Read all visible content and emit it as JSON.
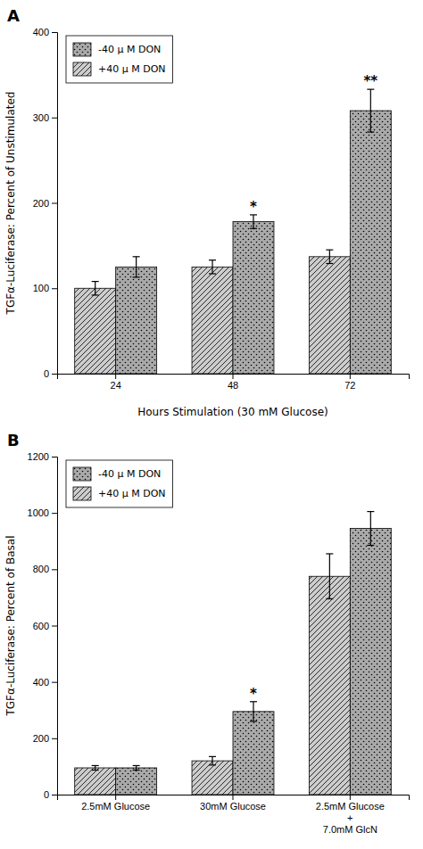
{
  "chart_data": [
    {
      "type": "bar",
      "title": "A",
      "categories": [
        "24",
        "48",
        "72"
      ],
      "series": [
        {
          "name": "+40 μ M DON",
          "color": "#cccccc",
          "values": [
            100,
            125,
            137
          ],
          "errors": [
            8,
            8,
            8
          ]
        },
        {
          "name": "-40 μ M DON",
          "color": "#aaaaaa",
          "values": [
            125,
            178,
            308
          ],
          "errors": [
            12,
            8,
            25
          ],
          "annotations": [
            null,
            "*",
            "**"
          ]
        }
      ],
      "xlabel": "Hours Stimulation (30 mM Glucose)",
      "ylabel": "TGFα-Luciferase: Percent of Unstimulated",
      "ylim": [
        0,
        400
      ],
      "yticks": [
        0,
        100,
        200,
        300,
        400
      ],
      "grid": false,
      "legend": "upper left"
    },
    {
      "type": "bar",
      "title": "B",
      "categories": [
        "2.5mM Glucose",
        "30mM Glucose",
        "2.5mM Glucose\n+\n7.0mM GlcN"
      ],
      "series": [
        {
          "name": "+40 μ M DON",
          "color": "#cccccc",
          "values": [
            95,
            120,
            775
          ],
          "errors": [
            8,
            15,
            80
          ]
        },
        {
          "name": "-40 μ M DON",
          "color": "#aaaaaa",
          "values": [
            95,
            295,
            945
          ],
          "errors": [
            8,
            35,
            60
          ],
          "annotations": [
            null,
            "*",
            null
          ]
        }
      ],
      "ylabel": "TGFα-Luciferase: Percent of Basal",
      "ylim": [
        0,
        1200
      ],
      "yticks": [
        0,
        200,
        400,
        600,
        800,
        1000,
        1200
      ],
      "grid": false,
      "legend": "upper left"
    }
  ]
}
